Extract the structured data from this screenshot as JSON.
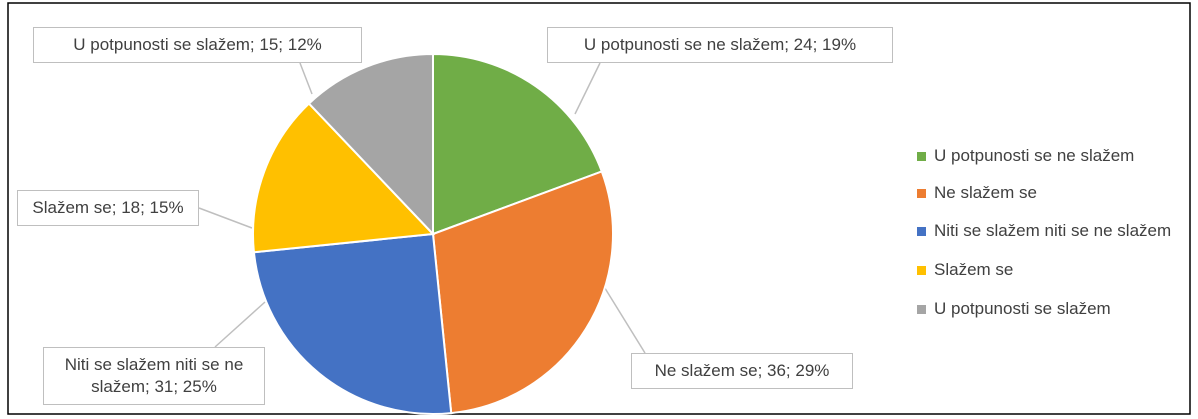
{
  "chart_data": {
    "type": "pie",
    "categories": [
      "U potpunosti se ne slažem",
      "Ne slažem se",
      "Niti se slažem niti se ne slažem",
      "Slažem se",
      "U potpunosti se slažem"
    ],
    "values": [
      24,
      36,
      31,
      18,
      15
    ],
    "value_labels": [
      "U potpunosti se ne slažem; 24; 19%",
      "Ne slažem se; 36; 29%",
      "Niti se slažem niti se ne slažem; 31; 25%",
      "Slažem se; 18; 15%",
      "U potpunosti se slažem; 15; 12%"
    ],
    "colors": [
      "#70ad47",
      "#ed7d31",
      "#4472c4",
      "#ffc000",
      "#a5a5a5"
    ],
    "legend": "right"
  }
}
